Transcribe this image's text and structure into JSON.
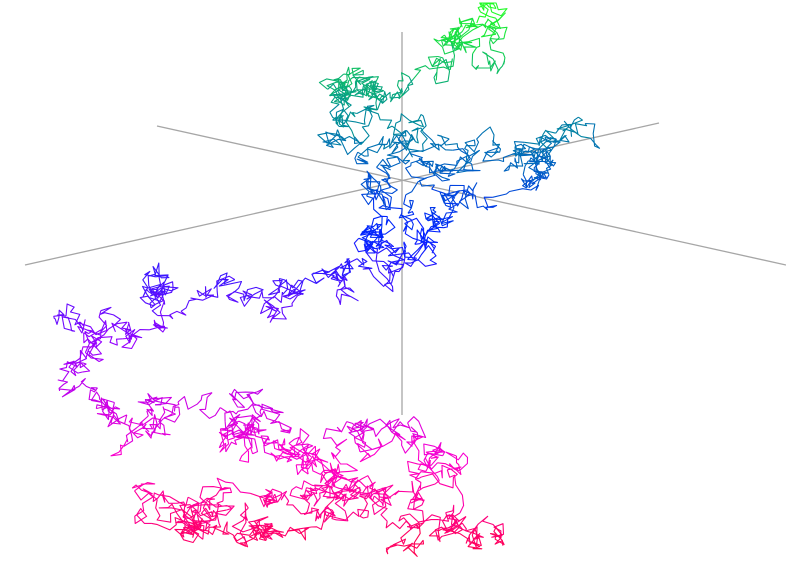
{
  "scene": {
    "background": "#ffffff",
    "axis_color": "#a6a6a6",
    "path_color_ramp": [
      "#ff0033",
      "#ff00cc",
      "#9900ff",
      "#0022ff",
      "#008c99",
      "#22ff22"
    ],
    "random_walk_seed": 73
  }
}
